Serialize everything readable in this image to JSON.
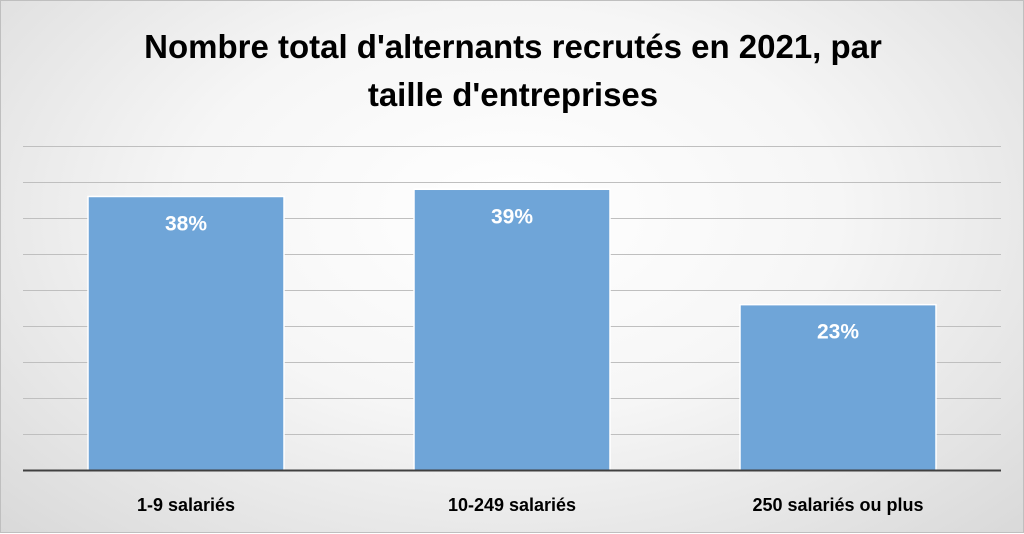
{
  "chart_data": {
    "type": "bar",
    "title_lines": [
      "Nombre total d'alternants recrutés en 2021, par",
      "taille d'entreprises"
    ],
    "categories": [
      "1-9 salariés",
      "10-249 salariés",
      "250 salariés ou plus"
    ],
    "values": [
      38,
      39,
      23
    ],
    "data_labels": [
      "38%",
      "39%",
      "23%"
    ],
    "ylim": [
      0,
      45
    ],
    "y_gridline_step": 5,
    "y_axis_visible": false,
    "grid": true,
    "legend": false,
    "colors": {
      "bar": "#6fa5d8",
      "bar_edge": "#ffffff",
      "gridline": "#bfbfbf",
      "baseline": "#404040"
    }
  }
}
